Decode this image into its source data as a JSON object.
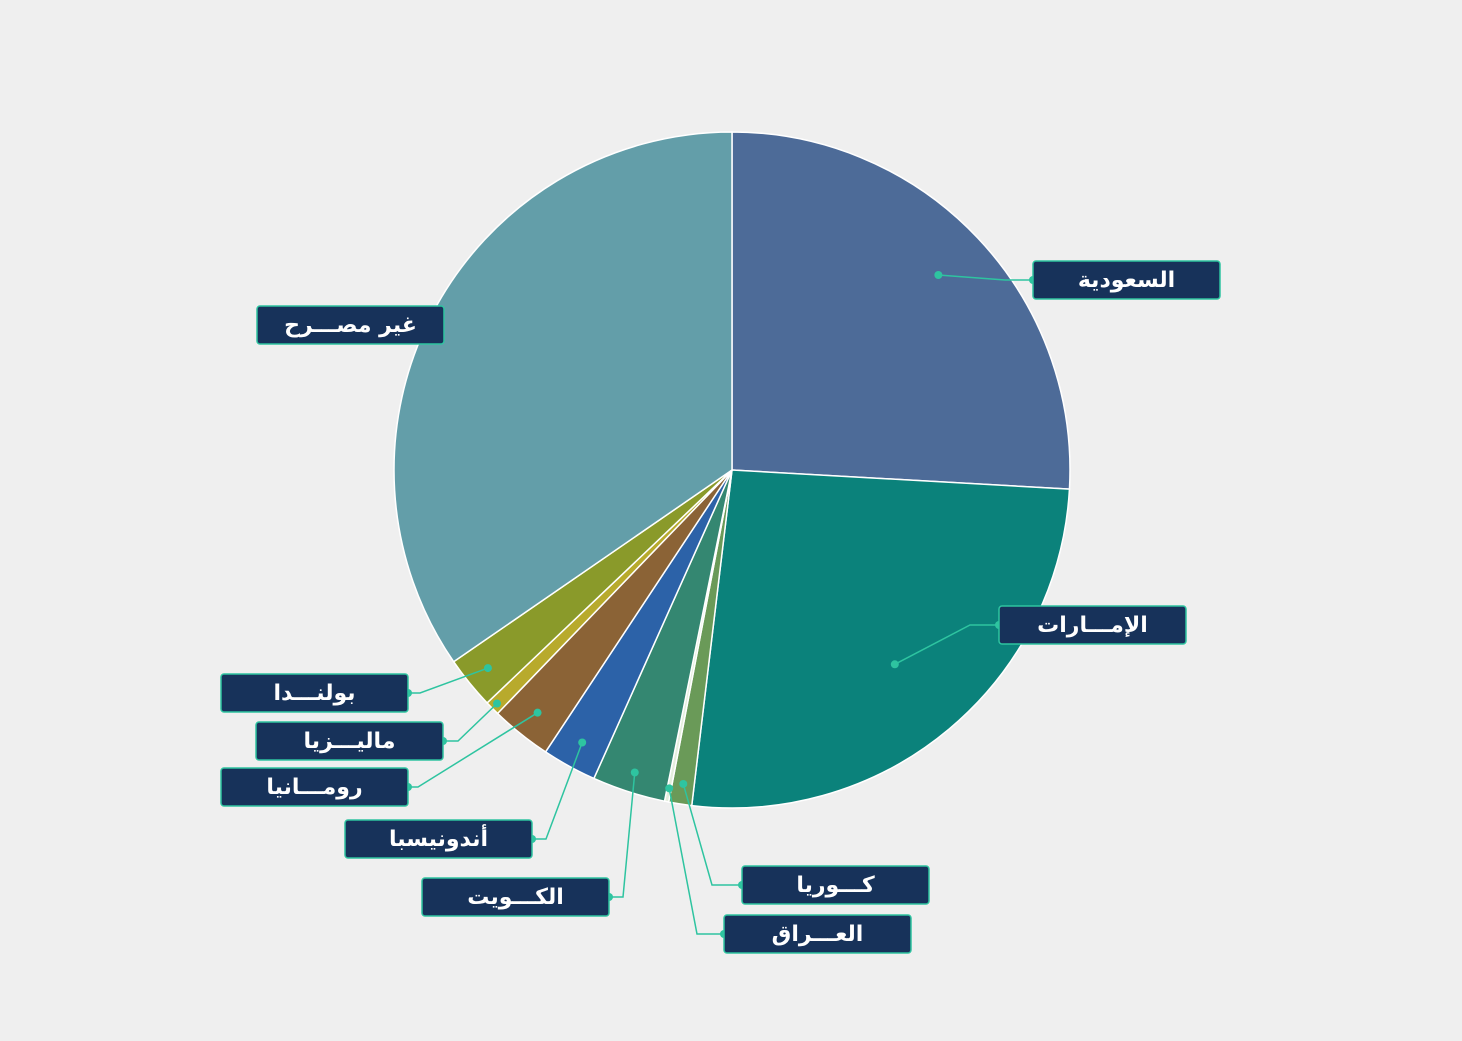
{
  "chart_data": {
    "type": "pie",
    "categories": [
      "السعودية",
      "الإمـــارات",
      "كـــوريا",
      "العـــراق",
      "الكـــويت",
      "أندونيسبا",
      "رومـــانيا",
      "ماليـــزيا",
      "بولنـــدا",
      "غير مصـــرح"
    ],
    "values": [
      25.9,
      26,
      1.1,
      0.2,
      3.5,
      2.6,
      2.9,
      0.7,
      2.5,
      34.6
    ],
    "colors": [
      "#4d6b98",
      "#0b827b",
      "#6a9a58",
      "#e4eedc",
      "#348771",
      "#2c62a8",
      "#8b6336",
      "#b8aa2c",
      "#8a9a2a",
      "#639ea9"
    ]
  }
}
